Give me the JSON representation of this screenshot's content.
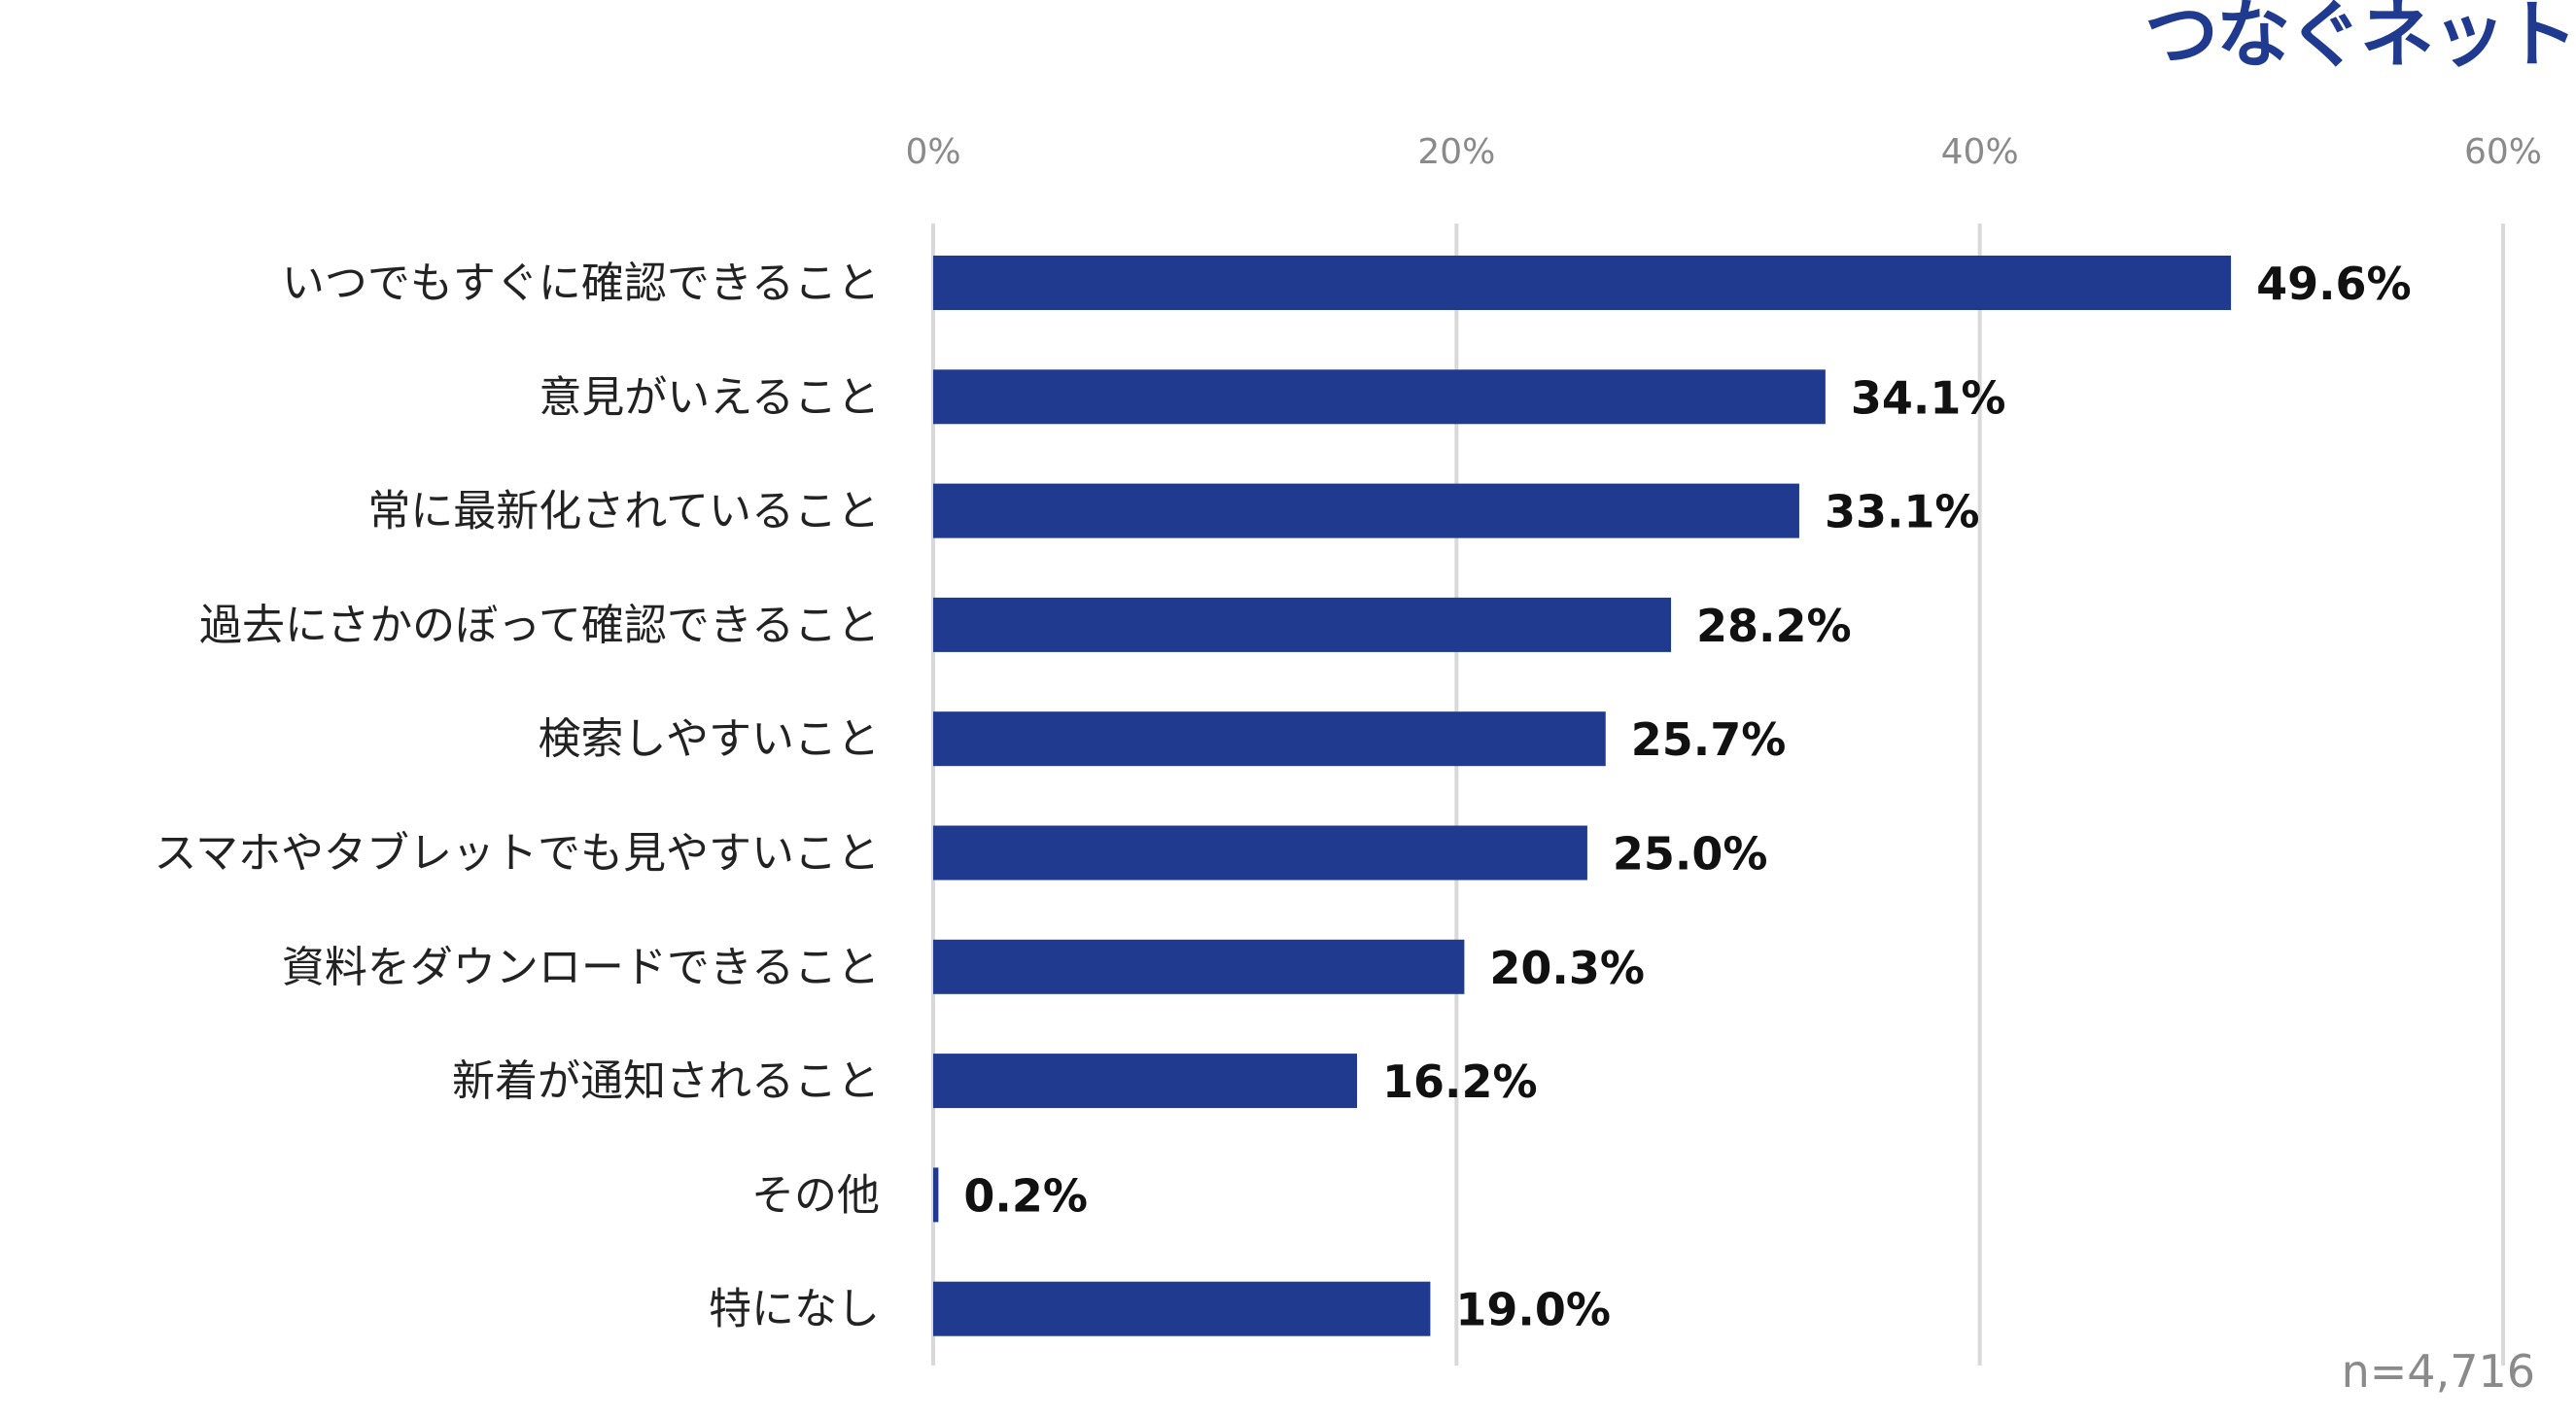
{
  "brand": {
    "logo_text": "つなぐネット",
    "color": "#1f3a8f"
  },
  "sample_size_label": "n=4,716",
  "chart_data": {
    "type": "bar",
    "orientation": "horizontal",
    "categories": [
      "いつでもすぐに確認できること",
      "意見がいえること",
      "常に最新化されていること",
      "過去にさかのぼって確認できること",
      "検索しやすいこと",
      "スマホやタブレットでも見やすいこと",
      "資料をダウンロードできること",
      "新着が通知されること",
      "その他",
      "特になし"
    ],
    "values": [
      49.6,
      34.1,
      33.1,
      28.2,
      25.7,
      25.0,
      20.3,
      16.2,
      0.2,
      19.0
    ],
    "value_labels": [
      "49.6%",
      "34.1%",
      "33.1%",
      "28.2%",
      "25.7%",
      "25.0%",
      "20.3%",
      "16.2%",
      "0.2%",
      "19.0%"
    ],
    "xlim": [
      0,
      60
    ],
    "x_ticks": [
      0,
      20,
      40,
      60
    ],
    "x_tick_labels": [
      "0%",
      "20%",
      "40%",
      "60%"
    ],
    "axis_position": "top",
    "grid": true,
    "bar_color": "#1f3a8f",
    "grid_color": "#d9d9d9"
  }
}
